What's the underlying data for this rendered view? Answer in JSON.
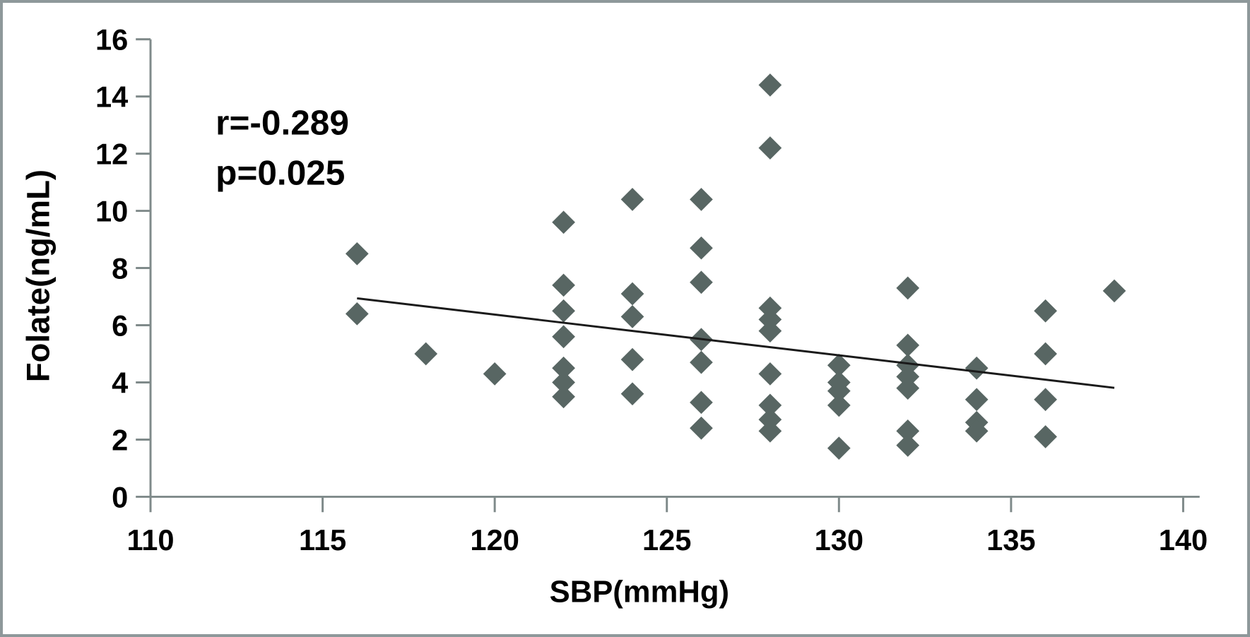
{
  "figure": {
    "annotation": {
      "r": "r=-0.289",
      "p": "p=0.025"
    },
    "colors": {
      "marker": "#586663",
      "axis": "#7f8a8a",
      "trend": "#1a1a1a",
      "frame": "#8e989a",
      "text": "#000000",
      "background": "#ffffff"
    }
  },
  "chart_data": {
    "type": "scatter",
    "title": "",
    "xlabel": "SBP(mmHg)",
    "ylabel": "Folate(ng/mL)",
    "xlim": [
      110,
      140
    ],
    "ylim": [
      0,
      16
    ],
    "xticks": [
      110,
      115,
      120,
      125,
      130,
      135,
      140
    ],
    "yticks": [
      0,
      2,
      4,
      6,
      8,
      10,
      12,
      14,
      16
    ],
    "grid": false,
    "legend": false,
    "marker": "diamond",
    "annotations": [
      "r=-0.289",
      "p=0.025"
    ],
    "points": [
      [
        116,
        8.5
      ],
      [
        116,
        6.4
      ],
      [
        118,
        5.0
      ],
      [
        120,
        4.3
      ],
      [
        122,
        9.6
      ],
      [
        122,
        7.4
      ],
      [
        122,
        6.5
      ],
      [
        122,
        5.6
      ],
      [
        122,
        4.5
      ],
      [
        122,
        4.0
      ],
      [
        122,
        3.5
      ],
      [
        124,
        10.4
      ],
      [
        124,
        7.1
      ],
      [
        124,
        6.3
      ],
      [
        124,
        4.8
      ],
      [
        124,
        3.6
      ],
      [
        126,
        10.4
      ],
      [
        126,
        8.7
      ],
      [
        126,
        7.5
      ],
      [
        126,
        5.5
      ],
      [
        126,
        4.7
      ],
      [
        126,
        3.3
      ],
      [
        126,
        2.4
      ],
      [
        128,
        14.4
      ],
      [
        128,
        12.2
      ],
      [
        128,
        6.6
      ],
      [
        128,
        6.2
      ],
      [
        128,
        5.8
      ],
      [
        128,
        4.3
      ],
      [
        128,
        3.2
      ],
      [
        128,
        2.7
      ],
      [
        128,
        2.3
      ],
      [
        130,
        4.6
      ],
      [
        130,
        4.0
      ],
      [
        130,
        3.7
      ],
      [
        130,
        3.2
      ],
      [
        130,
        1.7
      ],
      [
        132,
        7.3
      ],
      [
        132,
        5.3
      ],
      [
        132,
        4.6
      ],
      [
        132,
        4.2
      ],
      [
        132,
        3.8
      ],
      [
        132,
        2.3
      ],
      [
        132,
        1.8
      ],
      [
        134,
        4.5
      ],
      [
        134,
        3.4
      ],
      [
        134,
        2.6
      ],
      [
        134,
        2.3
      ],
      [
        136,
        6.5
      ],
      [
        136,
        5.0
      ],
      [
        136,
        3.4
      ],
      [
        136,
        2.1
      ],
      [
        138,
        7.2
      ]
    ],
    "trend_line": {
      "x1": 116,
      "y1": 6.94,
      "x2": 138,
      "y2": 3.81
    }
  }
}
